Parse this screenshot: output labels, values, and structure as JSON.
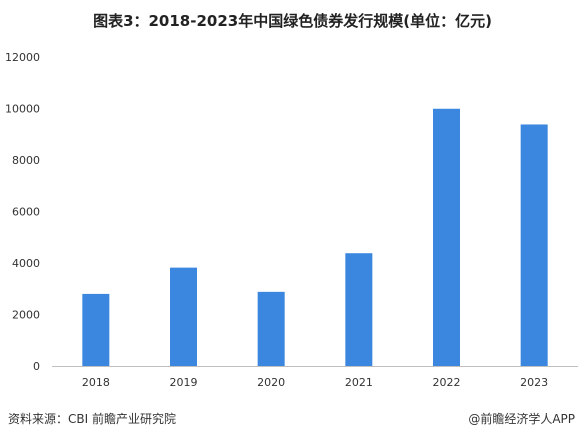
{
  "chart_data": {
    "type": "bar",
    "title": "图表3：2018-2023年中国绿色债券发行规模(单位：亿元)",
    "categories": [
      "2018",
      "2019",
      "2020",
      "2021",
      "2022",
      "2023"
    ],
    "values": [
      2800,
      3820,
      2880,
      4380,
      9990,
      9380
    ],
    "ylim": [
      0,
      12000
    ],
    "yticks": [
      "0",
      "2000",
      "4000",
      "6000",
      "8000",
      "10000",
      "12000"
    ],
    "grid": false,
    "bar_color": "#3b87e0"
  },
  "footer": {
    "source": "资料来源：CBI 前瞻产业研究院",
    "credit": "@前瞻经济学人APP"
  }
}
